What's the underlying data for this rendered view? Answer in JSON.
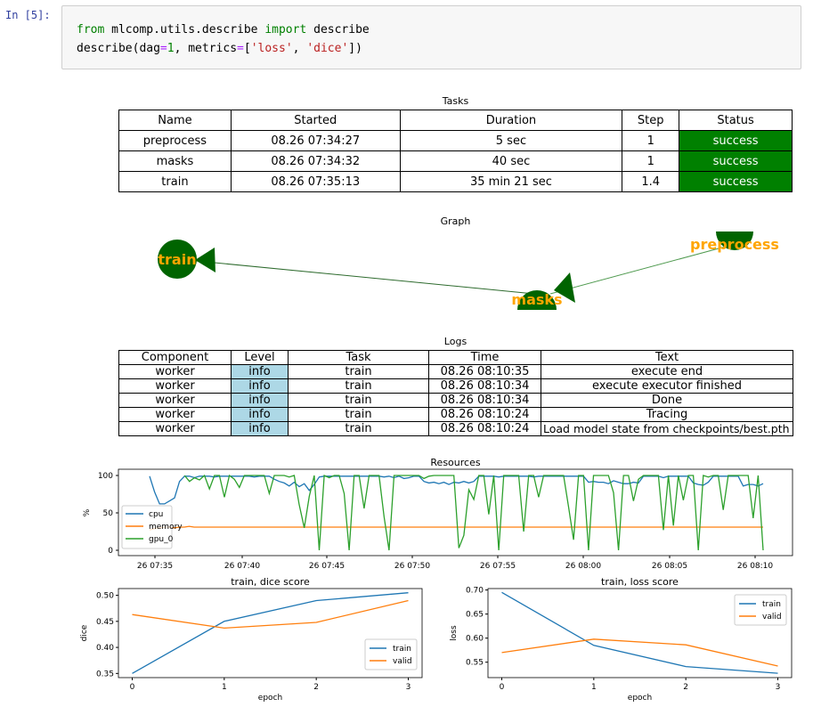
{
  "cell": {
    "prompt": "In [5]:",
    "code_line1": {
      "kw1": "from",
      "mod": " mlcomp.utils.describe ",
      "kw2": "import",
      "name": " describe"
    },
    "code_line2": {
      "fn": "describe(dag",
      "eq1": "=",
      "dag": "1",
      "mid": ", metrics",
      "eq2": "=",
      "open": "[",
      "s1": "'loss'",
      "comma": ", ",
      "s2": "'dice'",
      "close": "])"
    }
  },
  "tasks": {
    "title": "Tasks",
    "headers": [
      "Name",
      "Started",
      "Duration",
      "Step",
      "Status"
    ],
    "rows": [
      [
        "preprocess",
        "08.26 07:34:27",
        "5 sec",
        "1",
        "success"
      ],
      [
        "masks",
        "08.26 07:34:32",
        "40 sec",
        "1",
        "success"
      ],
      [
        "train",
        "08.26 07:35:13",
        "35 min 21 sec",
        "1.4",
        "success"
      ]
    ],
    "status_color": "#008000"
  },
  "graph": {
    "title": "Graph",
    "nodes": [
      "train",
      "masks",
      "preprocess"
    ],
    "node_color": "#006400",
    "label_color": "#ffa500"
  },
  "logs": {
    "title": "Logs",
    "headers": [
      "Component",
      "Level",
      "Task",
      "Time",
      "Text"
    ],
    "rows": [
      [
        "worker",
        "info",
        "train",
        "08.26 08:10:35",
        "execute end"
      ],
      [
        "worker",
        "info",
        "train",
        "08.26 08:10:34",
        "execute executor finished"
      ],
      [
        "worker",
        "info",
        "train",
        "08.26 08:10:34",
        "Done"
      ],
      [
        "worker",
        "info",
        "train",
        "08.26 08:10:24",
        "Tracing"
      ],
      [
        "worker",
        "info",
        "train",
        "08.26 08:10:24",
        "Load model state from checkpoints/best.pth"
      ]
    ],
    "level_color": "#add8e6"
  },
  "chart_data": [
    {
      "type": "line",
      "title": "Resources",
      "xlabel": "",
      "ylabel": "%",
      "xticks": [
        "26 07:35",
        "26 07:40",
        "26 07:45",
        "26 07:50",
        "26 07:55",
        "26 08:00",
        "26 08:05",
        "26 08:10"
      ],
      "yticks": [
        "0",
        "50",
        "100"
      ],
      "ylim": [
        0,
        100
      ],
      "legend": "lower-left",
      "series": [
        {
          "name": "cpu",
          "color": "#1f77b4",
          "values": [
            99,
            78,
            62,
            62,
            66,
            70,
            92,
            99,
            99,
            97,
            99,
            99,
            99,
            98,
            99,
            99,
            99,
            99,
            99,
            99,
            99,
            98,
            99,
            99,
            99,
            95,
            92,
            90,
            86,
            91,
            85,
            89,
            80,
            88,
            98,
            99,
            99,
            99,
            99,
            99,
            99,
            99,
            99,
            99,
            99,
            99,
            99,
            98,
            99,
            97,
            99,
            96,
            97,
            99,
            99,
            92,
            90,
            91,
            89,
            91,
            88,
            91,
            90,
            92,
            90,
            92,
            99,
            99,
            99,
            99,
            98,
            99,
            99,
            99,
            99,
            99,
            99,
            98,
            99,
            99,
            99,
            99,
            99,
            99,
            99,
            99,
            99,
            99,
            91,
            92,
            91,
            91,
            89,
            93,
            91,
            89,
            89,
            91,
            90,
            99,
            99,
            99,
            99,
            97,
            99,
            99,
            99,
            99,
            99,
            90,
            88,
            87,
            91,
            99,
            99,
            99,
            99,
            99,
            99,
            86,
            88,
            88,
            86,
            89
          ]
        },
        {
          "name": "memory",
          "color": "#ff7f0e",
          "values": [
            27,
            29,
            30,
            31,
            31,
            30,
            31,
            31,
            32,
            31,
            31,
            31,
            31,
            31,
            31,
            31,
            31,
            31,
            31,
            31,
            31,
            31,
            31,
            31,
            31,
            31,
            31,
            31,
            31,
            31,
            31,
            31,
            31,
            31,
            31,
            31,
            31,
            31,
            31,
            31,
            31,
            31,
            31,
            31,
            31,
            31,
            31,
            31,
            31,
            31,
            31,
            31,
            31,
            31,
            31,
            31,
            31,
            31,
            31,
            31,
            31,
            31,
            31,
            31,
            31,
            31,
            31,
            31,
            31,
            31,
            31,
            31,
            31,
            31,
            31,
            31,
            31,
            31,
            31,
            31,
            31,
            31,
            31,
            31,
            31,
            31,
            31,
            31,
            31,
            31,
            31,
            31,
            31,
            31,
            31,
            31,
            31,
            31,
            31,
            31,
            31,
            31,
            31,
            31,
            31,
            31,
            31,
            31,
            31,
            31,
            31,
            31,
            31,
            31,
            31,
            31,
            31,
            31,
            31,
            31,
            31,
            31,
            31,
            31,
            31
          ]
        },
        {
          "name": "gpu_0",
          "color": "#2ca02c",
          "values": [
            null,
            null,
            null,
            null,
            null,
            null,
            null,
            100,
            92,
            97,
            94,
            100,
            82,
            100,
            100,
            71,
            100,
            95,
            84,
            100,
            100,
            100,
            100,
            100,
            76,
            100,
            100,
            100,
            98,
            100,
            61,
            30,
            72,
            100,
            0,
            100,
            97,
            100,
            100,
            76,
            0,
            100,
            100,
            56,
            100,
            100,
            100,
            45,
            0,
            100,
            100,
            100,
            100,
            100,
            100,
            96,
            99,
            100,
            100,
            100,
            100,
            100,
            3,
            20,
            81,
            68,
            100,
            100,
            48,
            100,
            0,
            100,
            100,
            100,
            100,
            25,
            100,
            100,
            71,
            100,
            100,
            100,
            100,
            100,
            58,
            14,
            100,
            100,
            0,
            100,
            100,
            100,
            100,
            77,
            0,
            100,
            100,
            66,
            95,
            100,
            100,
            100,
            100,
            27,
            100,
            33,
            100,
            67,
            100,
            100,
            0,
            100,
            98,
            100,
            100,
            54,
            100,
            100,
            100,
            100,
            100,
            43,
            100,
            0
          ]
        }
      ]
    },
    {
      "type": "line",
      "title": "train, dice score",
      "xlabel": "epoch",
      "ylabel": "dice",
      "x": [
        0,
        1,
        2,
        3
      ],
      "xlim": [
        -0.15,
        3.15
      ],
      "ylim": [
        0.342,
        0.513
      ],
      "yticks": [
        0.35,
        0.4,
        0.45,
        0.5
      ],
      "ytick_labels": [
        "0.35",
        "0.40",
        "0.45",
        "0.50"
      ],
      "xtick_labels": [
        "0",
        "1",
        "2",
        "3"
      ],
      "legend": "lower-right",
      "series": [
        {
          "name": "train",
          "color": "#1f77b4",
          "values": [
            0.35,
            0.45,
            0.49,
            0.505
          ]
        },
        {
          "name": "valid",
          "color": "#ff7f0e",
          "values": [
            0.463,
            0.437,
            0.448,
            0.49
          ]
        }
      ]
    },
    {
      "type": "line",
      "title": "train, loss score",
      "xlabel": "epoch",
      "ylabel": "loss",
      "x": [
        0,
        1,
        2,
        3
      ],
      "xlim": [
        -0.15,
        3.15
      ],
      "ylim": [
        0.518,
        0.703
      ],
      "yticks": [
        0.55,
        0.6,
        0.65,
        0.7
      ],
      "ytick_labels": [
        "0.55",
        "0.60",
        "0.65",
        "0.70"
      ],
      "xtick_labels": [
        "0",
        "1",
        "2",
        "3"
      ],
      "legend": "upper-right",
      "series": [
        {
          "name": "train",
          "color": "#1f77b4",
          "values": [
            0.695,
            0.585,
            0.541,
            0.527
          ]
        },
        {
          "name": "valid",
          "color": "#ff7f0e",
          "values": [
            0.57,
            0.598,
            0.586,
            0.542
          ]
        }
      ]
    }
  ]
}
